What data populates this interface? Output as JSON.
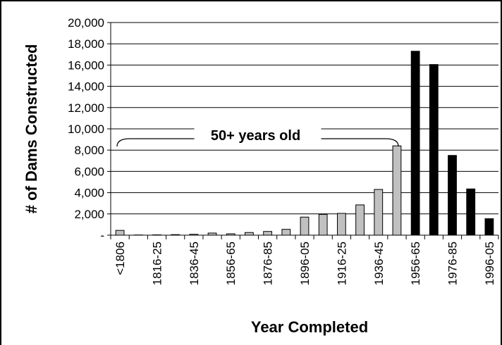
{
  "chart_data": {
    "type": "bar",
    "categories": [
      "<1806",
      "1806-15",
      "1816-25",
      "1826-35",
      "1836-45",
      "1846-55",
      "1856-65",
      "1866-75",
      "1876-85",
      "1886-95",
      "1896-05",
      "1906-15",
      "1916-25",
      "1926-35",
      "1936-45",
      "1946-55",
      "1956-65",
      "1966-75",
      "1976-85",
      "1986-95",
      "1996-05"
    ],
    "tick_labels": [
      "<1806",
      "",
      "1816-25",
      "",
      "1836-45",
      "",
      "1856-65",
      "",
      "1876-85",
      "",
      "1896-05",
      "",
      "1916-25",
      "",
      "1936-45",
      "",
      "1956-65",
      "",
      "1976-85",
      "",
      "1996-05"
    ],
    "values": [
      450,
      20,
      30,
      50,
      80,
      200,
      130,
      250,
      350,
      550,
      1700,
      1950,
      2050,
      2850,
      4300,
      8400,
      17300,
      16050,
      7500,
      4350,
      1550
    ],
    "bar_colors": [
      "#c0c0c0",
      "#c0c0c0",
      "#c0c0c0",
      "#c0c0c0",
      "#c0c0c0",
      "#c0c0c0",
      "#c0c0c0",
      "#c0c0c0",
      "#c0c0c0",
      "#c0c0c0",
      "#c0c0c0",
      "#c0c0c0",
      "#c0c0c0",
      "#c0c0c0",
      "#c0c0c0",
      "#c0c0c0",
      "#000000",
      "#000000",
      "#000000",
      "#000000",
      "#000000"
    ],
    "xlabel": "Year Completed",
    "ylabel": "# of Dams Constructed",
    "ylim": [
      0,
      20000
    ],
    "yticks": [
      0,
      2000,
      4000,
      6000,
      8000,
      10000,
      12000,
      14000,
      16000,
      18000,
      20000
    ],
    "ytick_labels": [
      "-",
      "2,000",
      "4,000",
      "6,000",
      "8,000",
      "10,000",
      "12,000",
      "14,000",
      "16,000",
      "18,000",
      "20,000"
    ],
    "grid": true,
    "annotation": {
      "text": "50+ years old",
      "span": [
        "<1806",
        "1946-55"
      ]
    }
  }
}
